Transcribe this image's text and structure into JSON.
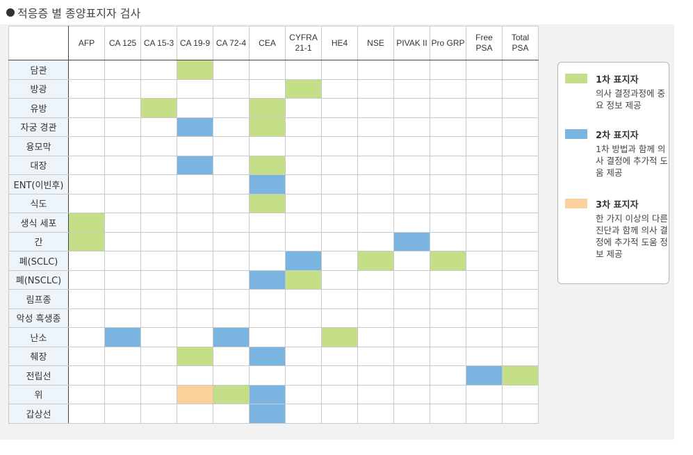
{
  "title": "적응증 별 종양표지자 검사",
  "table": {
    "columns": [
      "AFP",
      "CA 125",
      "CA 15-3",
      "CA 19-9",
      "CA 72-4",
      "CEA",
      "CYFRA 21-1",
      "HE4",
      "NSE",
      "PIVAK II",
      "Pro GRP",
      "Free PSA",
      "Total PSA"
    ],
    "rows": [
      {
        "label": "담관",
        "cells": [
          "",
          "",
          "",
          "1",
          "",
          "",
          "",
          "",
          "",
          "",
          "",
          "",
          ""
        ]
      },
      {
        "label": "방광",
        "cells": [
          "",
          "",
          "",
          "",
          "",
          "",
          "1",
          "",
          "",
          "",
          "",
          "",
          ""
        ]
      },
      {
        "label": "유방",
        "cells": [
          "",
          "",
          "1",
          "",
          "",
          "1",
          "",
          "",
          "",
          "",
          "",
          "",
          ""
        ]
      },
      {
        "label": "자궁 경관",
        "cells": [
          "",
          "",
          "",
          "2",
          "",
          "1",
          "",
          "",
          "",
          "",
          "",
          "",
          ""
        ]
      },
      {
        "label": "융모막",
        "cells": [
          "",
          "",
          "",
          "",
          "",
          "",
          "",
          "",
          "",
          "",
          "",
          "",
          ""
        ]
      },
      {
        "label": "대장",
        "cells": [
          "",
          "",
          "",
          "2",
          "",
          "1",
          "",
          "",
          "",
          "",
          "",
          "",
          ""
        ]
      },
      {
        "label": "ENT(이빈후)",
        "cells": [
          "",
          "",
          "",
          "",
          "",
          "2",
          "",
          "",
          "",
          "",
          "",
          "",
          ""
        ]
      },
      {
        "label": "식도",
        "cells": [
          "",
          "",
          "",
          "",
          "",
          "1",
          "",
          "",
          "",
          "",
          "",
          "",
          ""
        ]
      },
      {
        "label": "생식 세포",
        "cells": [
          "1",
          "",
          "",
          "",
          "",
          "",
          "",
          "",
          "",
          "",
          "",
          "",
          ""
        ]
      },
      {
        "label": "간",
        "cells": [
          "1",
          "",
          "",
          "",
          "",
          "",
          "",
          "",
          "",
          "2",
          "",
          "",
          ""
        ]
      },
      {
        "label": "폐(SCLC)",
        "cells": [
          "",
          "",
          "",
          "",
          "",
          "",
          "2",
          "",
          "1",
          "",
          "1",
          "",
          ""
        ]
      },
      {
        "label": "폐(NSCLC)",
        "cells": [
          "",
          "",
          "",
          "",
          "",
          "2",
          "1",
          "",
          "",
          "",
          "",
          "",
          ""
        ]
      },
      {
        "label": "림프종",
        "cells": [
          "",
          "",
          "",
          "",
          "",
          "",
          "",
          "",
          "",
          "",
          "",
          "",
          ""
        ]
      },
      {
        "label": "악성 흑생종",
        "cells": [
          "",
          "",
          "",
          "",
          "",
          "",
          "",
          "",
          "",
          "",
          "",
          "",
          ""
        ]
      },
      {
        "label": "난소",
        "cells": [
          "",
          "2",
          "",
          "",
          "2",
          "",
          "",
          "1",
          "",
          "",
          "",
          "",
          ""
        ]
      },
      {
        "label": "췌장",
        "cells": [
          "",
          "",
          "",
          "1",
          "",
          "2",
          "",
          "",
          "",
          "",
          "",
          "",
          ""
        ]
      },
      {
        "label": "전립선",
        "cells": [
          "",
          "",
          "",
          "",
          "",
          "",
          "",
          "",
          "",
          "",
          "",
          "2",
          "1"
        ]
      },
      {
        "label": "위",
        "cells": [
          "",
          "",
          "",
          "3",
          "1",
          "2",
          "",
          "",
          "",
          "",
          "",
          "",
          ""
        ]
      },
      {
        "label": "갑상선",
        "cells": [
          "",
          "",
          "",
          "",
          "",
          "2",
          "",
          "",
          "",
          "",
          "",
          "",
          ""
        ]
      }
    ]
  },
  "legend": [
    {
      "level": "1",
      "color": "#c5df88",
      "name": "1차 표지자",
      "desc": "의사 결정과정에 중요 정보 제공"
    },
    {
      "level": "2",
      "color": "#7ab5e2",
      "name": "2차 표지자",
      "desc": "1차 방법과 함께 의사 결정에 추가적 도움 제공"
    },
    {
      "level": "3",
      "color": "#fcd09a",
      "name": "3차 표지자",
      "desc": "한 가지 이상의 다른 진단과 함께 의사 결정에 추가적 도움 정보 제공"
    }
  ]
}
